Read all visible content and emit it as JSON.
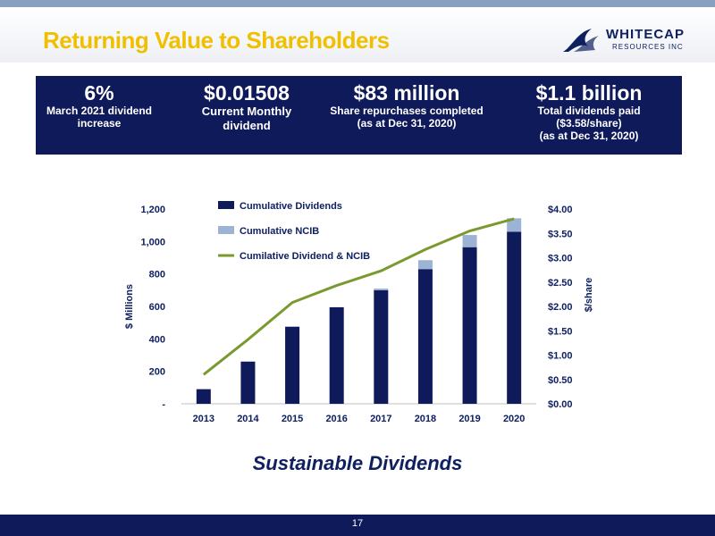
{
  "header": {
    "title": "Returning Value to Shareholders"
  },
  "logo": {
    "line1": "WHITECAP",
    "line2": "RESOURCES INC"
  },
  "kpis": [
    {
      "value": "6%",
      "label": "March 2021 dividend\nincrease"
    },
    {
      "value": "$0.01508",
      "label": "Current Monthly\ndividend"
    },
    {
      "value": "$83 million",
      "label": "Share repurchases completed\n(as at Dec 31, 2020)"
    },
    {
      "value": "$1.1 billion",
      "label": "Total dividends paid\n($3.58/share)\n(as at Dec 31, 2020)"
    }
  ],
  "chart_data": {
    "type": "bar",
    "categories": [
      "2013",
      "2014",
      "2015",
      "2016",
      "2017",
      "2018",
      "2019",
      "2020"
    ],
    "series": [
      {
        "name": "Cumulative Dividends",
        "kind": "bar",
        "axis": "left",
        "color": "#0f1a5a",
        "values": [
          90,
          260,
          475,
          595,
          700,
          830,
          965,
          1060
        ]
      },
      {
        "name": "Cumulative NCIB",
        "kind": "bar-stack",
        "axis": "left",
        "color": "#9db3d6",
        "values": [
          0,
          0,
          0,
          0,
          10,
          55,
          75,
          83
        ]
      },
      {
        "name": "Cumilative Dividend & NCIB",
        "kind": "line",
        "axis": "right",
        "color": "#7a9a30",
        "values": [
          0.6,
          1.32,
          2.08,
          2.43,
          2.73,
          3.17,
          3.55,
          3.8
        ]
      }
    ],
    "ylabel": "$ Millions",
    "y2label": "$/share",
    "ylim": [
      0,
      1200
    ],
    "y2lim": [
      0,
      4
    ],
    "yticks": [
      "-",
      "200",
      "400",
      "600",
      "800",
      "1,000",
      "1,200"
    ],
    "y2ticks": [
      "$0.00",
      "$0.50",
      "$1.00",
      "$1.50",
      "$2.00",
      "$2.50",
      "$3.00",
      "$3.50",
      "$4.00"
    ],
    "legend": "top-left",
    "grid": false
  },
  "subtitle": "Sustainable Dividends",
  "footer": {
    "page": "17"
  }
}
